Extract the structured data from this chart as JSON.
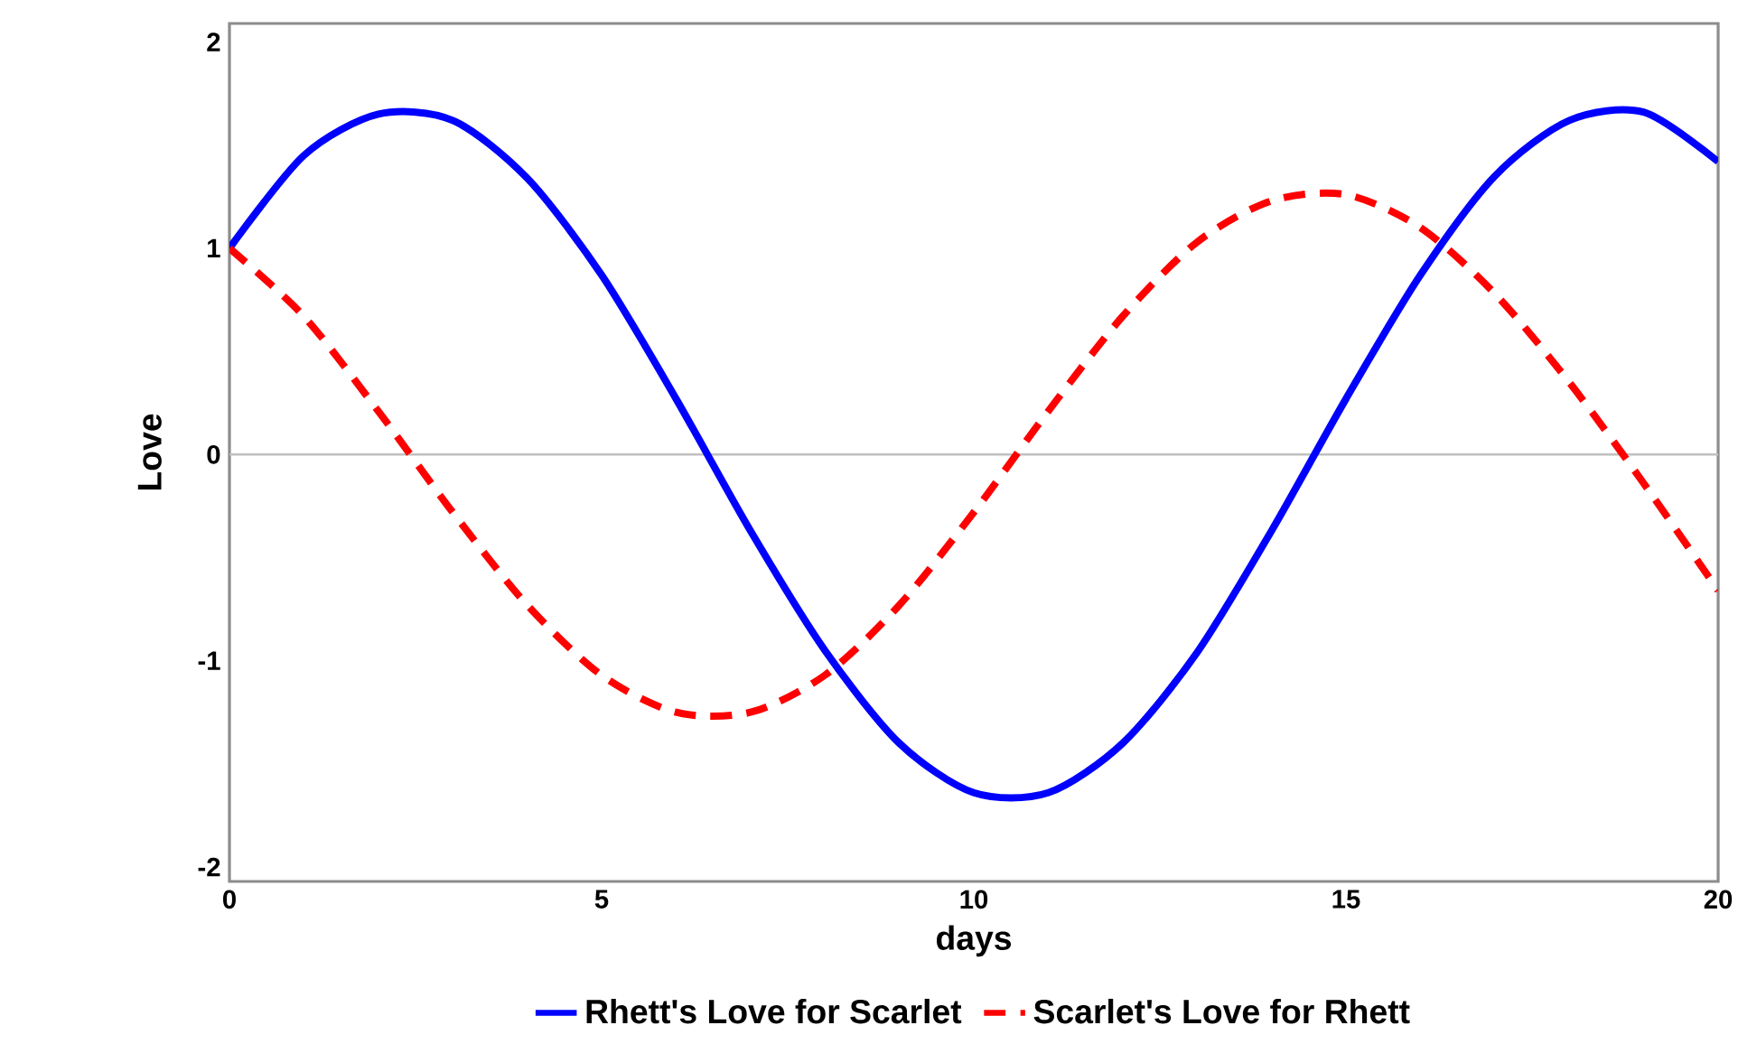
{
  "chart_data": {
    "type": "line",
    "xlabel": "days",
    "ylabel": "Love",
    "x": [
      0,
      1,
      2,
      3,
      4,
      5,
      6,
      7,
      8,
      9,
      10,
      11,
      12,
      13,
      14,
      15,
      16,
      17,
      18,
      19,
      20
    ],
    "series": [
      {
        "name": "Rhett's Love for Scarlet",
        "color": "#0000ff",
        "line_style": "solid",
        "values": [
          1.0,
          1.45,
          1.65,
          1.62,
          1.34,
          0.87,
          0.27,
          -0.37,
          -0.95,
          -1.4,
          -1.64,
          -1.64,
          -1.4,
          -0.96,
          -0.37,
          0.27,
          0.87,
          1.35,
          1.62,
          1.66,
          1.42
        ]
      },
      {
        "name": "Scarlet's Love for Rhett",
        "color": "#ff0000",
        "line_style": "dashed",
        "values": [
          1.0,
          0.67,
          0.21,
          -0.28,
          -0.73,
          -1.07,
          -1.25,
          -1.25,
          -1.07,
          -0.73,
          -0.28,
          0.21,
          0.67,
          1.03,
          1.23,
          1.26,
          1.1,
          0.78,
          0.35,
          -0.14,
          -0.66
        ]
      }
    ],
    "xlim": [
      0,
      20
    ],
    "ylim": [
      -2.07,
      2.09
    ],
    "xticks": [
      0,
      5,
      10,
      15,
      20
    ],
    "yticks": [
      -2,
      -1,
      0,
      1,
      2
    ],
    "ref_lines": [
      {
        "axis": "y",
        "value": 0,
        "color": "#c0c0c0"
      }
    ],
    "grid": false,
    "legend": "bottom",
    "marker": "none"
  }
}
